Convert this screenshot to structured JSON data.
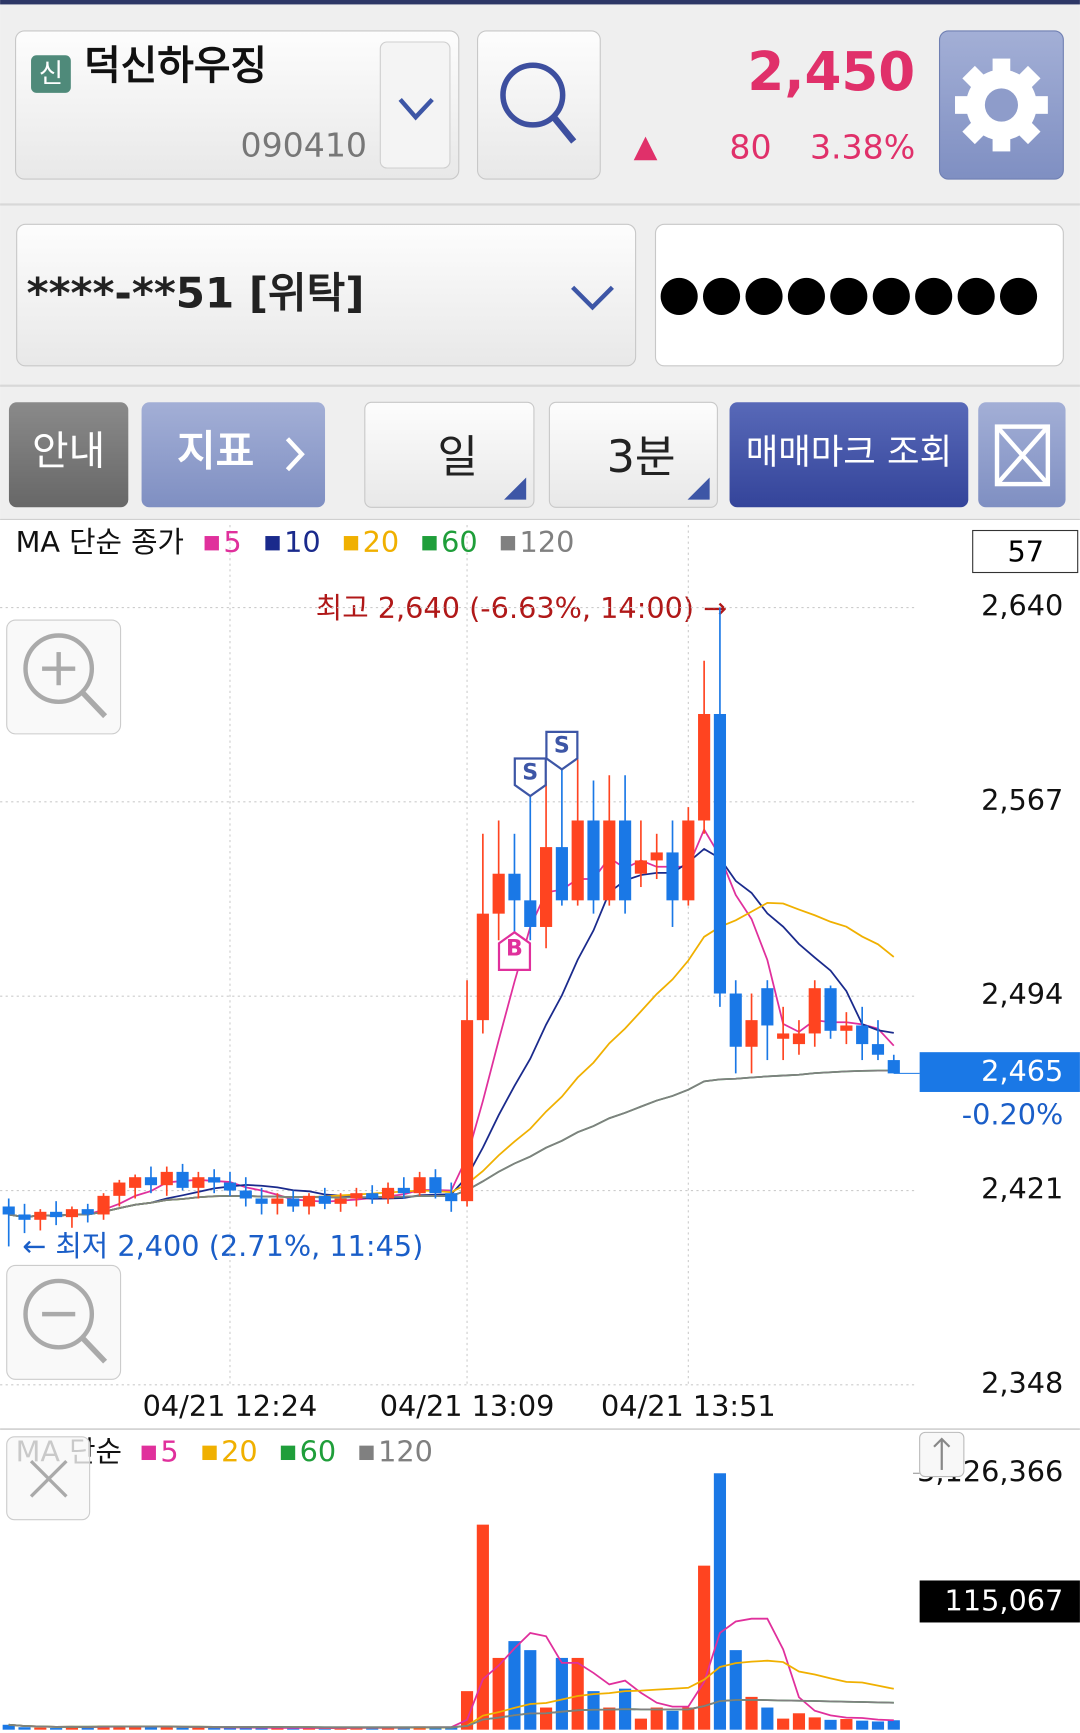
{
  "header": {
    "badge": "신",
    "stock_name": "덕신하우징",
    "code": "090410",
    "price": "2,450",
    "change_arrow": "▲",
    "change": "80",
    "change_pct": "3.38%"
  },
  "account": {
    "number": "****-**51 [위탁]",
    "password": "●●●●●●●●●"
  },
  "toolbar": {
    "info": "안내",
    "indicator": "지표",
    "period": "일",
    "interval": "3분",
    "trade_mark": "매매마크 조회"
  },
  "chart_data": [
    {
      "type": "candlestick",
      "legend_title": "MA 단순 종가",
      "ma": [
        {
          "name": "5",
          "color": "#e0309c"
        },
        {
          "name": "10",
          "color": "#1a2a8c"
        },
        {
          "name": "20",
          "color": "#f0b000"
        },
        {
          "name": "60",
          "color": "#1f9e3a"
        },
        {
          "name": "120",
          "color": "#808080"
        }
      ],
      "categories": [
        null,
        null,
        null,
        null,
        null,
        null,
        null,
        null,
        null,
        null,
        null,
        null,
        null,
        null,
        "04/21 12:24",
        null,
        null,
        null,
        null,
        null,
        null,
        null,
        null,
        null,
        null,
        null,
        null,
        null,
        null,
        "04/21 13:09",
        null,
        null,
        null,
        null,
        null,
        null,
        null,
        null,
        null,
        null,
        null,
        null,
        null,
        "04/21 13:51",
        null,
        null,
        null,
        null,
        null,
        null,
        null,
        null,
        null,
        null,
        null,
        null,
        null
      ],
      "open": [
        2415,
        2412,
        2410,
        2413,
        2411,
        2414,
        2412,
        2419,
        2422,
        2426,
        2423,
        2428,
        2422,
        2426,
        2424,
        2421,
        2418,
        2416,
        2418,
        2415,
        2419,
        2416,
        2418,
        2420,
        2418,
        2422,
        2420,
        2426,
        2420,
        2417,
        2485,
        2525,
        2540,
        2530,
        2520,
        2550,
        2530,
        2560,
        2530,
        2560,
        2540,
        2545,
        2548,
        2530,
        2560,
        2600,
        2495,
        2475,
        2497,
        2478,
        2476,
        2480,
        2497,
        2481,
        2483,
        2476,
        2470
      ],
      "high": [
        2418,
        2416,
        2414,
        2417,
        2415,
        2416,
        2420,
        2425,
        2427,
        2430,
        2430,
        2431,
        2428,
        2429,
        2428,
        2426,
        2422,
        2420,
        2421,
        2420,
        2422,
        2420,
        2422,
        2423,
        2424,
        2426,
        2428,
        2429,
        2424,
        2500,
        2555,
        2560,
        2555,
        2570,
        2575,
        2580,
        2583,
        2575,
        2577,
        2577,
        2560,
        2555,
        2560,
        2565,
        2620,
        2640,
        2500,
        2495,
        2500,
        2490,
        2485,
        2500,
        2498,
        2488,
        2490,
        2485,
        2472
      ],
      "low": [
        2400,
        2405,
        2406,
        2408,
        2407,
        2409,
        2410,
        2415,
        2418,
        2420,
        2419,
        2421,
        2418,
        2420,
        2419,
        2415,
        2412,
        2412,
        2413,
        2412,
        2414,
        2413,
        2415,
        2416,
        2416,
        2418,
        2419,
        2418,
        2413,
        2415,
        2480,
        2515,
        2518,
        2515,
        2512,
        2528,
        2528,
        2525,
        2528,
        2525,
        2535,
        2538,
        2520,
        2528,
        2555,
        2490,
        2465,
        2465,
        2470,
        2470,
        2472,
        2475,
        2478,
        2476,
        2470,
        2470,
        2465
      ],
      "close": [
        2412,
        2410,
        2413,
        2411,
        2414,
        2412,
        2419,
        2424,
        2426,
        2423,
        2428,
        2422,
        2426,
        2424,
        2421,
        2418,
        2416,
        2418,
        2415,
        2419,
        2416,
        2418,
        2420,
        2418,
        2422,
        2420,
        2426,
        2420,
        2417,
        2485,
        2525,
        2540,
        2530,
        2520,
        2550,
        2530,
        2560,
        2530,
        2560,
        2530,
        2545,
        2548,
        2530,
        2560,
        2600,
        2495,
        2475,
        2485,
        2483,
        2480,
        2480,
        2497,
        2481,
        2483,
        2476,
        2472,
        2465
      ],
      "up_color": "#ff4420",
      "down_color": "#1a78e6",
      "ylim": [
        2348,
        2671
      ],
      "yticks": [
        {
          "value": 2640,
          "label": "2,640"
        },
        {
          "value": 2567,
          "label": "2,567"
        },
        {
          "value": 2494,
          "label": "2,494"
        },
        {
          "value": 2421,
          "label": "2,421"
        },
        {
          "value": 2348,
          "label": "2,348"
        }
      ],
      "grid": true,
      "high_annotation": "최고 2,640 (-6.63%, 14:00) →",
      "low_annotation": "← 최저 2,400 (2.71%, 11:45)",
      "current_price": {
        "value": 2465,
        "label": "2,465"
      },
      "current_change": "-0.20%",
      "counter": "57",
      "trade_marks": [
        {
          "label": "B",
          "index": 32
        },
        {
          "label": "S",
          "index": 33
        },
        {
          "label": "S",
          "index": 35
        }
      ]
    },
    {
      "type": "bar",
      "legend_title": "MA 단순",
      "ma": [
        {
          "name": "5",
          "color": "#e0309c"
        },
        {
          "name": "20",
          "color": "#f0b000"
        },
        {
          "name": "60",
          "color": "#1f9e3a"
        },
        {
          "name": "120",
          "color": "#808080"
        }
      ],
      "values": [
        60000,
        30000,
        25000,
        20000,
        40000,
        35000,
        50000,
        45000,
        30000,
        40000,
        35000,
        25000,
        30000,
        20000,
        25000,
        30000,
        20000,
        15000,
        20000,
        25000,
        15000,
        20000,
        25000,
        30000,
        20000,
        25000,
        40000,
        35000,
        30000,
        470000,
        2500000,
        875000,
        1080000,
        970000,
        270000,
        875000,
        875000,
        470000,
        270000,
        500000,
        135000,
        270000,
        230000,
        270000,
        2000000,
        3126366,
        970000,
        400000,
        270000,
        135000,
        200000,
        150000,
        120000,
        130000,
        110000,
        100000,
        115067
      ],
      "value_labels_last": "115,067",
      "ylim": [
        0,
        3126366
      ],
      "yticks": [
        {
          "value": 3126366,
          "label": "3,126,366"
        }
      ]
    }
  ]
}
